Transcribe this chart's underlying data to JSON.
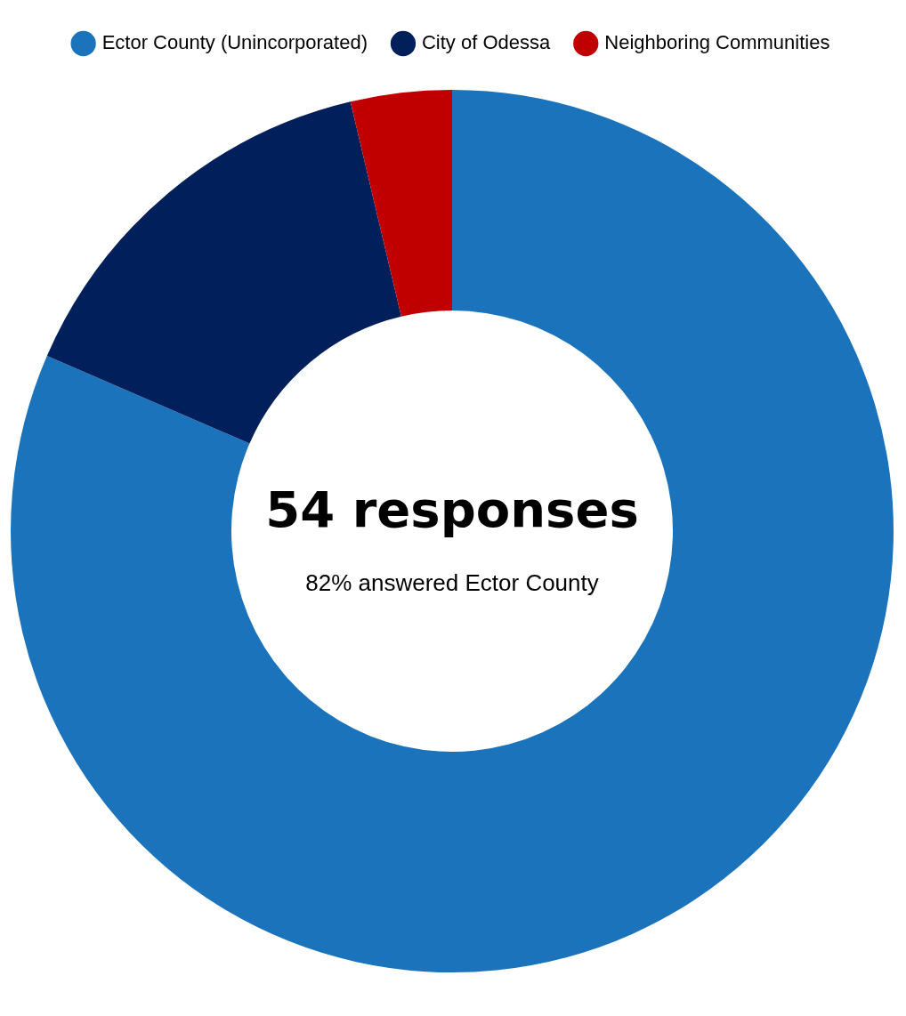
{
  "chart_data": {
    "type": "donut",
    "categories": [
      "Ector County (Unincorporated)",
      "City of Odessa",
      "Neighboring Communities"
    ],
    "values": [
      81.5,
      14.8,
      3.7
    ],
    "colors": [
      "#1a73bb",
      "#001f5b",
      "#c00000"
    ],
    "legend": "top",
    "annotations": [
      "54 responses",
      "82% answered Ector County"
    ]
  }
}
